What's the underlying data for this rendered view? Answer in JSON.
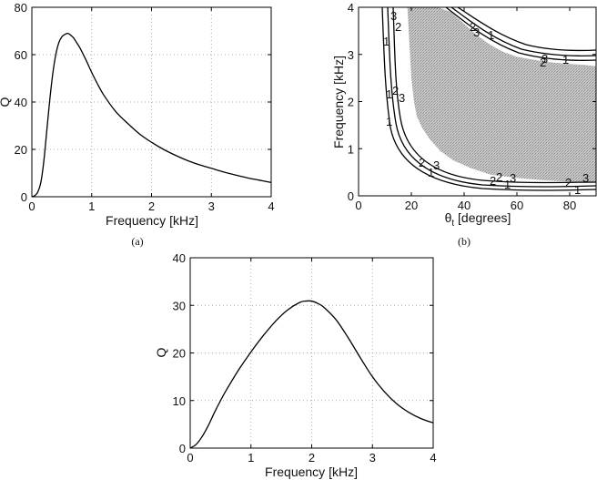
{
  "chart_data": [
    {
      "id": "a",
      "type": "line",
      "caption": "(a)",
      "xlabel": "Frequency [kHz]",
      "ylabel": "Q",
      "xlim": [
        0,
        4
      ],
      "ylim": [
        0,
        80
      ],
      "xticks": [
        0,
        1,
        2,
        3,
        4
      ],
      "yticks": [
        0,
        20,
        40,
        60,
        80
      ],
      "grid": true,
      "series": [
        {
          "name": "Q",
          "x": [
            0,
            0.05,
            0.1,
            0.15,
            0.2,
            0.25,
            0.3,
            0.35,
            0.4,
            0.45,
            0.5,
            0.55,
            0.6,
            0.65,
            0.7,
            0.75,
            0.8,
            0.9,
            1.0,
            1.1,
            1.2,
            1.4,
            1.6,
            1.8,
            2.0,
            2.2,
            2.4,
            2.6,
            2.8,
            3.0,
            3.2,
            3.4,
            3.6,
            3.8,
            4.0
          ],
          "y": [
            0,
            0.5,
            2,
            6,
            15,
            28,
            41,
            52,
            60,
            65,
            67.5,
            68.5,
            69,
            68.2,
            67,
            65,
            63,
            58,
            52.5,
            47.5,
            43,
            36,
            31,
            26.5,
            23,
            20,
            17.5,
            15.3,
            13.5,
            12,
            10.5,
            9.2,
            8,
            7,
            6
          ]
        }
      ]
    },
    {
      "id": "b",
      "type": "contour",
      "caption": "(b)",
      "xlabel": "θ",
      "xlabel_sub": "t",
      "xlabel_suffix": " [degrees]",
      "ylabel": "Frequency [kHz]",
      "xlim": [
        0,
        90
      ],
      "ylim": [
        0,
        4
      ],
      "xticks": [
        0,
        20,
        40,
        60,
        80
      ],
      "yticks": [
        0,
        1,
        2,
        3,
        4
      ],
      "grid": false,
      "contour_levels": [
        "1",
        "2",
        "3"
      ],
      "contour_labels": [
        "3",
        "2",
        "1",
        "1",
        "2",
        "3",
        "2",
        "3",
        "1",
        "1",
        "2",
        "3",
        "1",
        "2",
        "3",
        "2",
        "1",
        "3",
        "2",
        "1",
        "1",
        "3",
        "2"
      ],
      "shaded_region": {
        "outer_boundary": {
          "x": [
            18.5,
            19,
            19.5,
            20,
            21,
            22,
            24,
            27,
            31,
            36,
            42,
            50,
            60,
            70,
            80,
            90
          ],
          "y": [
            4,
            3.5,
            3.0,
            2.5,
            2.0,
            1.7,
            1.45,
            1.2,
            0.95,
            0.75,
            0.6,
            0.45,
            0.38,
            0.33,
            0.3,
            0.28
          ]
        },
        "inner_boundary": {
          "x": [
            30,
            35,
            40,
            45,
            50,
            55,
            60,
            65,
            70,
            75,
            80,
            85,
            90
          ],
          "y": [
            4,
            3.9,
            3.65,
            3.4,
            3.2,
            3.05,
            2.95,
            2.9,
            2.85,
            2.82,
            2.8,
            2.78,
            2.75
          ]
        }
      }
    },
    {
      "id": "c",
      "type": "line",
      "caption": "",
      "xlabel": "Frequency [kHz]",
      "ylabel": "Q",
      "xlim": [
        0,
        4
      ],
      "ylim": [
        0,
        40
      ],
      "xticks": [
        0,
        1,
        2,
        3,
        4
      ],
      "yticks": [
        0,
        10,
        20,
        30,
        40
      ],
      "grid": true,
      "series": [
        {
          "name": "Q",
          "x": [
            0,
            0.1,
            0.2,
            0.3,
            0.4,
            0.5,
            0.6,
            0.8,
            1.0,
            1.2,
            1.4,
            1.6,
            1.8,
            1.9,
            2.0,
            2.1,
            2.2,
            2.4,
            2.6,
            2.8,
            3.0,
            3.2,
            3.4,
            3.6,
            3.8,
            4.0
          ],
          "y": [
            0,
            0.8,
            2.5,
            4.8,
            7.5,
            10,
            12.3,
            16.5,
            20.2,
            23.6,
            26.6,
            29,
            30.6,
            30.9,
            30.9,
            30.4,
            29.6,
            27,
            23.2,
            19,
            15,
            11.8,
            9.3,
            7.5,
            6.2,
            5.3
          ]
        }
      ]
    }
  ]
}
